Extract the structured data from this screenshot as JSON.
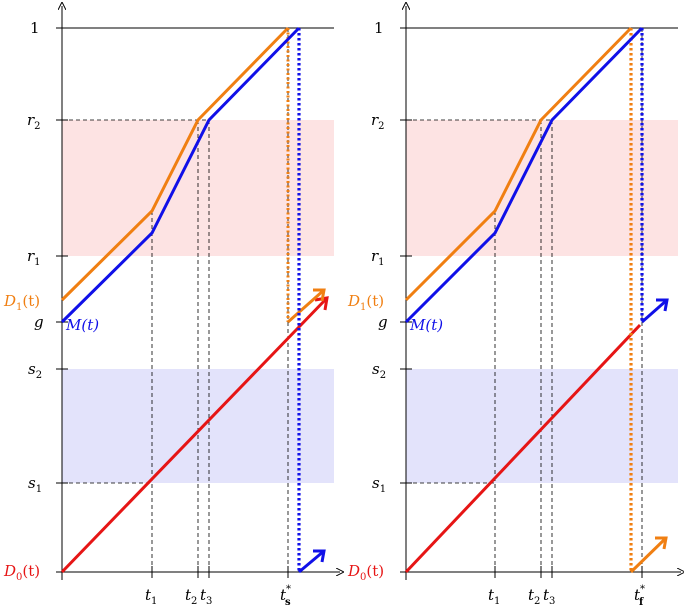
{
  "colors": {
    "D1": "#f07f12",
    "M": "#1010e8",
    "D0": "#e61515",
    "band_r": "#fde3e3",
    "band_s": "#e3e3fb",
    "axis": "#000000"
  },
  "labels": {
    "one": "1",
    "r2": "r",
    "r2_sub": "2",
    "r1": "r",
    "r1_sub": "1",
    "g": "g",
    "s2": "s",
    "s2_sub": "2",
    "s1": "s",
    "s1_sub": "1",
    "D1": "D",
    "D1_sub": "1",
    "D1_arg": "(t)",
    "M": "M(t)",
    "D0": "D",
    "D0_sub": "0",
    "D0_arg": "(t)",
    "t": "t",
    "t1_sub": "1",
    "t2_sub": "2",
    "t3_sub": "3",
    "ts_sup": "*",
    "ts_sub": "s",
    "tf_sup": "*",
    "tf_sub": "f"
  },
  "panels": [
    {
      "name": "left",
      "final_time_label": "t*_s"
    },
    {
      "name": "right",
      "final_time_label": "t*_f"
    }
  ]
}
